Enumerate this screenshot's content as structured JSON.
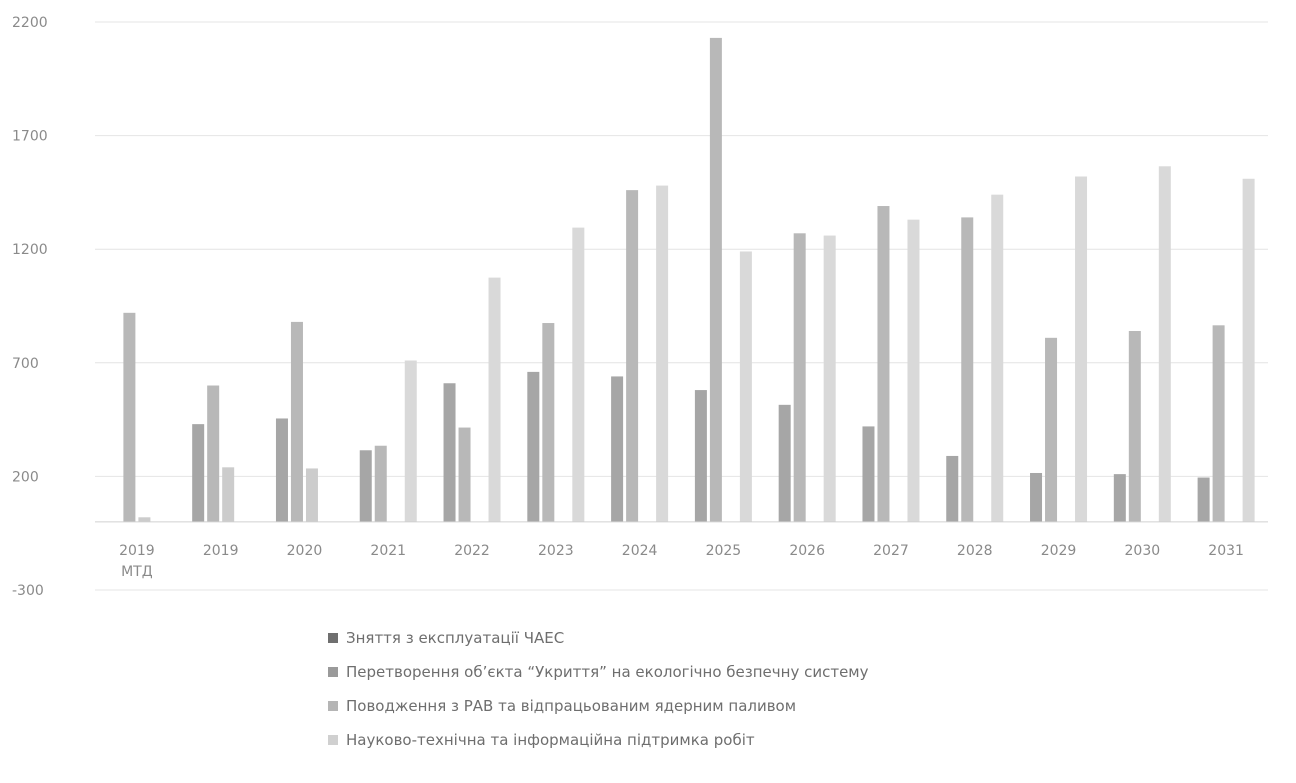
{
  "chart_data": {
    "type": "bar",
    "title": "",
    "xlabel": "",
    "ylabel": "",
    "ylim": [
      -300,
      2200
    ],
    "yticks": [
      2200,
      1700,
      1200,
      700,
      200,
      -300
    ],
    "grid": true,
    "legend_position": "bottom",
    "categories": [
      [
        "2019",
        "МТД"
      ],
      [
        "2019"
      ],
      [
        "2020"
      ],
      [
        "2021"
      ],
      [
        "2022"
      ],
      [
        "2023"
      ],
      [
        "2024"
      ],
      [
        "2025"
      ],
      [
        "2026"
      ],
      [
        "2027"
      ],
      [
        "2028"
      ],
      [
        "2029"
      ],
      [
        "2030"
      ],
      [
        "2031"
      ]
    ],
    "series": [
      {
        "name": "Зняття з експлуатації ЧАЕС",
        "color": "#a6a6a6",
        "values": [
          0,
          430,
          455,
          315,
          610,
          660,
          640,
          580,
          515,
          420,
          290,
          215,
          210,
          195
        ]
      },
      {
        "name": "Перетворення об’єкта “Укриття” на екологічно безпечну систему",
        "color": "#b8b8b8",
        "values": [
          920,
          600,
          880,
          335,
          415,
          875,
          1460,
          2130,
          1270,
          1390,
          1340,
          810,
          840,
          865
        ]
      },
      {
        "name": "Поводження з РАВ та відпрацьованим ядерним паливом",
        "color": "#cccccc",
        "values": [
          20,
          240,
          235,
          0,
          0,
          0,
          0,
          0,
          0,
          0,
          0,
          0,
          0,
          0
        ]
      },
      {
        "name": "Науково-технічна та інформаційна підтримка робіт",
        "color": "#d9d9d9",
        "values": [
          0,
          0,
          0,
          710,
          1075,
          1295,
          1480,
          1190,
          1260,
          1330,
          1440,
          1520,
          1565,
          1510
        ]
      }
    ]
  }
}
